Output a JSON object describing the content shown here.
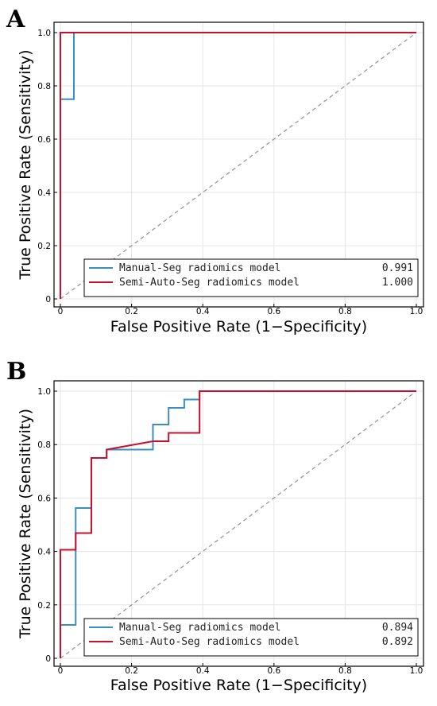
{
  "chart_data": [
    {
      "panel": "A",
      "type": "line",
      "xlabel": "False Positive Rate (1−Specificity)",
      "ylabel": "True Positive Rate (Sensitivity)",
      "xlim": [
        0,
        1
      ],
      "ylim": [
        0,
        1
      ],
      "x_ticks": [
        "0",
        "0.2",
        "0.4",
        "0.6",
        "0.8",
        "1.0"
      ],
      "y_ticks": [
        "0",
        "0.2",
        "0.4",
        "0.6",
        "0.8",
        "1.0"
      ],
      "grid": true,
      "legend_position": "bottom-right",
      "diagonal_reference": true,
      "series": [
        {
          "name": "Manual-Seg radiomics model",
          "auc": "0.991",
          "color": "#3b8ec4",
          "points": [
            [
              0,
              0
            ],
            [
              0,
              0.75
            ],
            [
              0.038,
              0.75
            ],
            [
              0.038,
              1.0
            ],
            [
              1.0,
              1.0
            ]
          ]
        },
        {
          "name": "Semi-Auto-Seg radiomics model",
          "auc": "1.000",
          "color": "#c8102e",
          "points": [
            [
              0,
              0
            ],
            [
              0,
              1.0
            ],
            [
              1.0,
              1.0
            ]
          ]
        }
      ]
    },
    {
      "panel": "B",
      "type": "line",
      "xlabel": "False Positive Rate (1−Specificity)",
      "ylabel": "True Positive Rate (Sensitivity)",
      "xlim": [
        0,
        1
      ],
      "ylim": [
        0,
        1
      ],
      "x_ticks": [
        "0",
        "0.2",
        "0.4",
        "0.6",
        "0.8",
        "1.0"
      ],
      "y_ticks": [
        "0",
        "0.2",
        "0.4",
        "0.6",
        "0.8",
        "1.0"
      ],
      "grid": true,
      "legend_position": "bottom-right",
      "diagonal_reference": true,
      "series": [
        {
          "name": "Manual-Seg radiomics model",
          "auc": "0.894",
          "color": "#3b8ec4",
          "points": [
            [
              0,
              0
            ],
            [
              0,
              0.125
            ],
            [
              0.043,
              0.125
            ],
            [
              0.043,
              0.5625
            ],
            [
              0.087,
              0.5625
            ],
            [
              0.087,
              0.75
            ],
            [
              0.13,
              0.75
            ],
            [
              0.13,
              0.78125
            ],
            [
              0.26,
              0.78125
            ],
            [
              0.26,
              0.875
            ],
            [
              0.304,
              0.875
            ],
            [
              0.304,
              0.9375
            ],
            [
              0.348,
              0.9375
            ],
            [
              0.348,
              0.96875
            ],
            [
              0.391,
              0.96875
            ],
            [
              0.391,
              1.0
            ],
            [
              1.0,
              1.0
            ]
          ]
        },
        {
          "name": "Semi-Auto-Seg radiomics model",
          "auc": "0.892",
          "color": "#c8102e",
          "points": [
            [
              0,
              0
            ],
            [
              0,
              0.40625
            ],
            [
              0.043,
              0.40625
            ],
            [
              0.043,
              0.46875
            ],
            [
              0.087,
              0.46875
            ],
            [
              0.087,
              0.75
            ],
            [
              0.13,
              0.75
            ],
            [
              0.13,
              0.78125
            ],
            [
              0.26,
              0.8125
            ],
            [
              0.304,
              0.8125
            ],
            [
              0.304,
              0.84375
            ],
            [
              0.391,
              0.84375
            ],
            [
              0.391,
              1.0
            ],
            [
              1.0,
              1.0
            ]
          ]
        }
      ]
    }
  ]
}
